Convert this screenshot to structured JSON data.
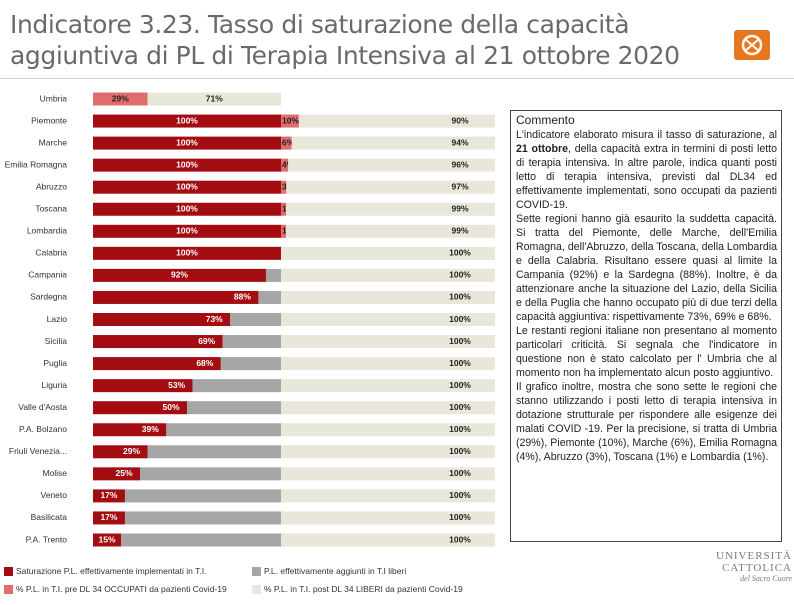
{
  "title": "Indicatore 3.23. Tasso di saturazione della capacità aggiuntiva di PL di Terapia Intensiva al 21 ottobre 2020",
  "colors": {
    "saturazione": "#a30d12",
    "pl_occupati_pre": "#e06c6c",
    "pl_aggiunti_liberi": "#a6a6a6",
    "pl_liberi_post": "#e9e7d9"
  },
  "chart_data": {
    "type": "bar",
    "orientation": "horizontal",
    "stacked": true,
    "categories": [
      "Umbria",
      "Piemonte",
      "Marche",
      "Emilia Romagna",
      "Abruzzo",
      "Toscana",
      "Lombardia",
      "Calabria",
      "Campania",
      "Sardegna",
      "Lazio",
      "Sicilia",
      "Puglia",
      "Liguria",
      "Valle d'Aosta",
      "P.A. Bolzano",
      "Friuli Venezia...",
      "Molise",
      "Veneto",
      "Basilicata",
      "P.A. Trento"
    ],
    "series": [
      {
        "name": "Saturazione P.L. effettivamente implementati in T.I.",
        "values": [
          null,
          100,
          100,
          100,
          100,
          100,
          100,
          100,
          92,
          88,
          73,
          69,
          68,
          53,
          50,
          39,
          29,
          25,
          17,
          17,
          15
        ],
        "labels": [
          "",
          "100%",
          "100%",
          "100%",
          "100%",
          "100%",
          "100%",
          "100%",
          "92%",
          "88%",
          "73%",
          "69%",
          "68%",
          "53%",
          "50%",
          "39%",
          "29%",
          "25%",
          "17%",
          "17%",
          "15%"
        ]
      },
      {
        "name": "P.L. effettivamente aggiunti in T.I liberi",
        "values": [
          null,
          0,
          0,
          0,
          0,
          0,
          0,
          0,
          8,
          12,
          27,
          31,
          32,
          47,
          50,
          61,
          71,
          75,
          83,
          83,
          85
        ],
        "labels": []
      },
      {
        "name": "% P.L. in T.I. pre DL 34 OCCUPATI da pazienti Covid-19",
        "values": [
          29,
          10,
          6,
          4,
          3,
          1,
          1,
          null,
          null,
          null,
          null,
          null,
          null,
          null,
          null,
          null,
          null,
          null,
          null,
          null,
          null
        ],
        "labels": [
          "29%",
          "10%",
          "6%",
          "4%",
          "3%",
          "1%",
          "1%",
          "",
          "",
          "",
          "",
          "",
          "",
          "",
          "",
          "",
          "",
          "",
          "",
          "",
          ""
        ]
      },
      {
        "name": "% P.L. in T.I. post DL 34 LIBERI da pazienti Covid-19",
        "values": [
          71,
          90,
          94,
          96,
          97,
          99,
          99,
          100,
          100,
          100,
          100,
          100,
          100,
          100,
          100,
          100,
          100,
          100,
          100,
          100,
          100
        ],
        "labels": [
          "71%",
          "90%",
          "94%",
          "96%",
          "97%",
          "99%",
          "99%",
          "100%",
          "100%",
          "100%",
          "100%",
          "100%",
          "100%",
          "100%",
          "100%",
          "100%",
          "100%",
          "100%",
          "100%",
          "100%",
          "100%"
        ]
      }
    ],
    "legend_position": "bottom",
    "grid": false
  },
  "comment": {
    "title": "Commento",
    "p1a": "L'indicatore elaborato misura il tasso di saturazione, al ",
    "p1b": "21 ottobre",
    "p1c": ", della capacità extra in termini di posti letto di terapia intensiva. In altre parole, indica quanti  posti letto di terapia intensiva, previsti dal DL34 ed effettivamente implementati, sono occupati da pazienti COVID-19.",
    "p2": "Sette regioni hanno già esaurito la suddetta capacità. Si tratta del Piemonte, delle Marche, dell'Emilia Romagna, dell'Abruzzo, della Toscana, della Lombardia e della Calabria. Risultano essere quasi al limite la Campania (92%) e la Sardegna (88%). Inoltre, è da attenzionare anche la situazione del Lazio, della Sicilia e della Puglia che hanno occupato più di due terzi della capacità aggiuntiva: rispettivamente 73%, 69% e 68%.",
    "p3": "Le restanti regioni italiane non presentano al momento particolari criticità. Si segnala che l'indicatore in questione non è stato calcolato per l' Umbria che al momento non ha implementato alcun posto aggiuntivo.",
    "p4": "Il grafico inoltre, mostra che sono sette le regioni che stanno utilizzando i posti letto di terapia intensiva in dotazione strutturale per rispondere alle esigenze dei malati  COVID -19. Per la precisione, si tratta di Umbria (29%), Piemonte (10%), Marche (6%), Emilia Romagna (4%), Abruzzo (3%), Toscana (1%) e Lombardia (1%)."
  },
  "university": {
    "line1": "UNIVERSITÀ",
    "line2": "CATTOLICA",
    "line3": "del Sacro Cuore"
  }
}
